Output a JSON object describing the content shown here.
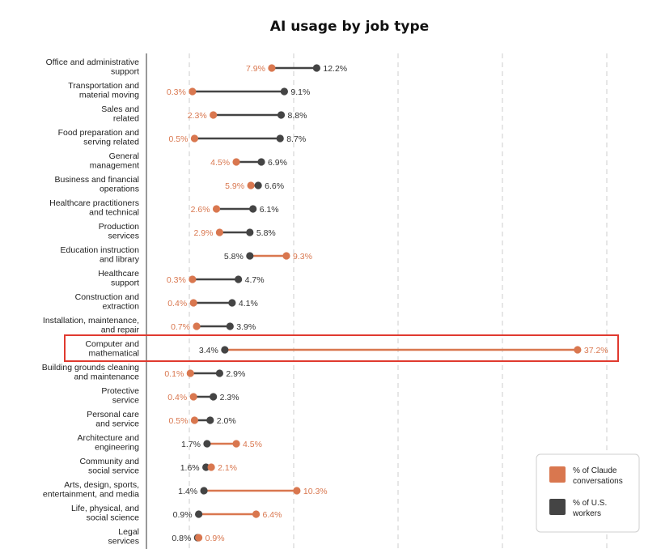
{
  "chart_data": {
    "type": "dumbbell",
    "title": "AI usage by job type",
    "colors": {
      "claude": "#d9774f",
      "workers": "#444444",
      "highlight": "#e03a2f"
    },
    "highlighted_category": "Computer and mathematical",
    "categories": [
      [
        "Office and administrative",
        "support"
      ],
      [
        "Transportation and",
        "material moving"
      ],
      [
        "Sales and",
        "related"
      ],
      [
        "Food preparation and",
        "serving related"
      ],
      [
        "General",
        "management"
      ],
      [
        "Business and financial",
        "operations"
      ],
      [
        "Healthcare practitioners",
        "and technical"
      ],
      [
        "Production",
        "services"
      ],
      [
        "Education instruction",
        "and library"
      ],
      [
        "Healthcare",
        "support"
      ],
      [
        "Construction and",
        "extraction"
      ],
      [
        "Installation, maintenance,",
        "and repair"
      ],
      [
        "Computer and",
        "mathematical"
      ],
      [
        "Building grounds cleaning",
        "and maintenance"
      ],
      [
        "Protective",
        "service"
      ],
      [
        "Personal care",
        "and service"
      ],
      [
        "Architecture and",
        "engineering"
      ],
      [
        "Community and",
        "social service"
      ],
      [
        "Arts, design, sports,",
        "entertainment, and media"
      ],
      [
        "Life, physical, and",
        "social science"
      ],
      [
        "Legal",
        "services"
      ]
    ],
    "series": [
      {
        "name": "% of Claude conversations",
        "key": "claude",
        "values": [
          7.9,
          0.3,
          2.3,
          0.5,
          4.5,
          5.9,
          2.6,
          2.9,
          9.3,
          0.3,
          0.4,
          0.7,
          37.2,
          0.1,
          0.4,
          0.5,
          4.5,
          2.1,
          10.3,
          6.4,
          0.9
        ]
      },
      {
        "name": "% of U.S. workers",
        "key": "workers",
        "values": [
          12.2,
          9.1,
          8.8,
          8.7,
          6.9,
          6.6,
          6.1,
          5.8,
          5.8,
          4.7,
          4.1,
          3.9,
          3.4,
          2.9,
          2.3,
          2.0,
          1.7,
          1.6,
          1.4,
          0.9,
          0.8
        ]
      }
    ],
    "value_labels": {
      "claude": [
        "7.9%",
        "0.3%",
        "2.3%",
        "0.5%",
        "4.5%",
        "5.9%",
        "2.6%",
        "2.9%",
        "9.3%",
        "0.3%",
        "0.4%",
        "0.7%",
        "37.2%",
        "0.1%",
        "0.4%",
        "0.5%",
        "4.5%",
        "2.1%",
        "10.3%",
        "6.4%",
        "0.9%"
      ],
      "workers": [
        "12.2%",
        "9.1%",
        "8.8%",
        "8.7%",
        "6.9%",
        "6.6%",
        "6.1%",
        "5.8%",
        "5.8%",
        "4.7%",
        "4.1%",
        "3.9%",
        "3.4%",
        "2.9%",
        "2.3%",
        "2.0%",
        "1.7%",
        "1.6%",
        "1.4%",
        "0.9%",
        "0.8%"
      ]
    },
    "xlim": [
      0,
      40
    ],
    "grid": "vertical-dashed",
    "legend": {
      "position": "bottom-right",
      "entries": [
        [
          "% of Claude",
          "conversations"
        ],
        [
          "% of U.S.",
          "workers"
        ]
      ]
    }
  }
}
